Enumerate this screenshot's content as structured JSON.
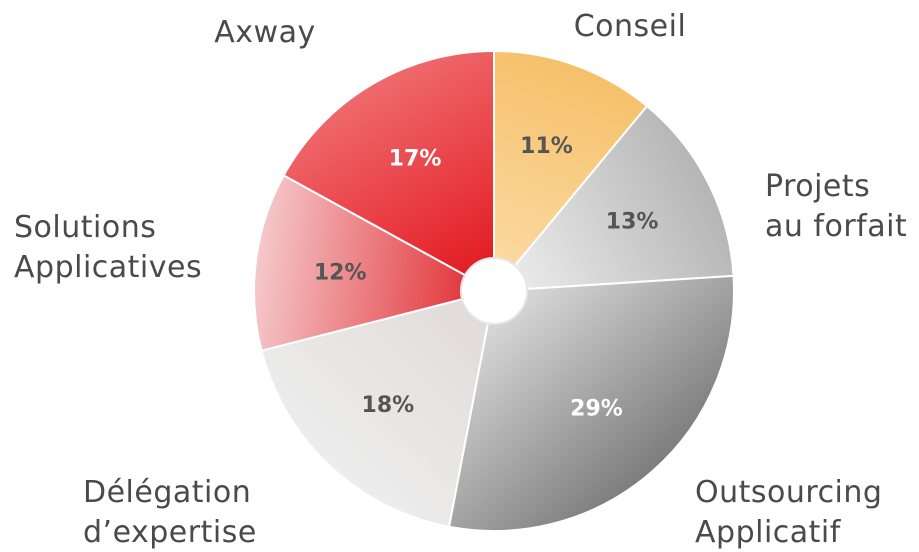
{
  "chart_data": {
    "type": "pie",
    "title": "",
    "categories": [
      "Conseil",
      "Projets au forfait",
      "Outsourcing Applicatif",
      "Délégation d'expertise",
      "Solutions Applicatives",
      "Axway"
    ],
    "values": [
      11,
      13,
      29,
      18,
      12,
      17
    ],
    "slices": [
      {
        "label_lines": [
          "Conseil"
        ],
        "value": 11,
        "display": "11%",
        "colors": [
          "#f6c06a",
          "#fbd9a0"
        ],
        "pct_color": "#555555"
      },
      {
        "label_lines": [
          "Projets",
          "au forfait"
        ],
        "value": 13,
        "display": "13%",
        "colors": [
          "#b5b5b5",
          "#e9e9e9"
        ],
        "pct_color": "#555555"
      },
      {
        "label_lines": [
          "Outsourcing",
          "Applicatif"
        ],
        "value": 29,
        "display": "29%",
        "colors": [
          "#7d7d7d",
          "#d4d4d4"
        ],
        "pct_color": "#ffffff"
      },
      {
        "label_lines": [
          "Délégation",
          "d’expertise"
        ],
        "value": 18,
        "display": "18%",
        "colors": [
          "#ededed",
          "#e1dcda"
        ],
        "pct_color": "#555555"
      },
      {
        "label_lines": [
          "Solutions",
          "Applicatives"
        ],
        "value": 12,
        "display": "12%",
        "colors": [
          "#f5c9cb",
          "#e23a3f"
        ],
        "pct_color": "#555555"
      },
      {
        "label_lines": [
          "Axway"
        ],
        "value": 17,
        "display": "17%",
        "colors": [
          "#ef6a6d",
          "#e31e25"
        ],
        "pct_color": "#ffffff"
      }
    ],
    "start": "12 o'clock",
    "direction": "clockwise",
    "center_hole": true,
    "legend": "none"
  }
}
